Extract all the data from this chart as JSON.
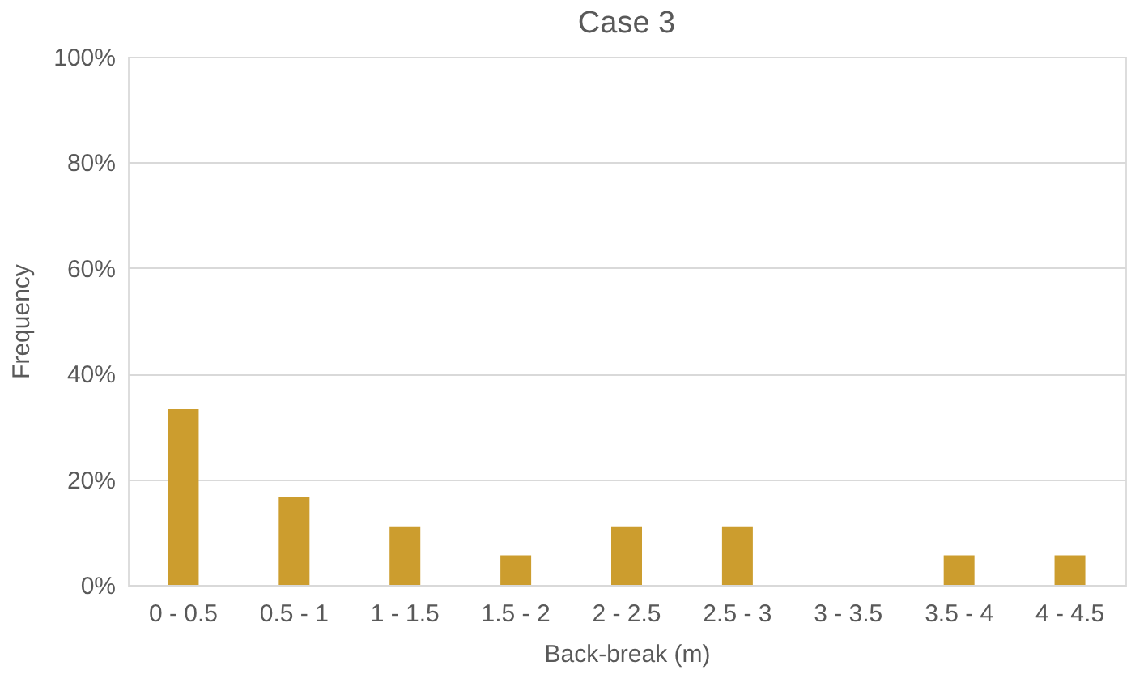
{
  "chart_data": {
    "type": "bar",
    "title": "Case 3",
    "xlabel": "Back-break (m)",
    "ylabel": "Frequency",
    "categories": [
      "0 - 0.5",
      "0.5 - 1",
      "1 - 1.5",
      "1.5 - 2",
      "2 - 2.5",
      "2.5 - 3",
      "3 - 3.5",
      "3.5 - 4",
      "4 - 4.5"
    ],
    "values": [
      33.3,
      16.7,
      11.1,
      5.6,
      11.1,
      11.1,
      0,
      5.6,
      5.6
    ],
    "color": "#cc9d2e",
    "ylim": [
      0,
      100
    ],
    "yticks": [
      {
        "value": 0,
        "label": "0%"
      },
      {
        "value": 20,
        "label": "20%"
      },
      {
        "value": 40,
        "label": "40%"
      },
      {
        "value": 60,
        "label": "60%"
      },
      {
        "value": 80,
        "label": "80%"
      },
      {
        "value": 100,
        "label": "100%"
      }
    ],
    "grid": "y"
  }
}
